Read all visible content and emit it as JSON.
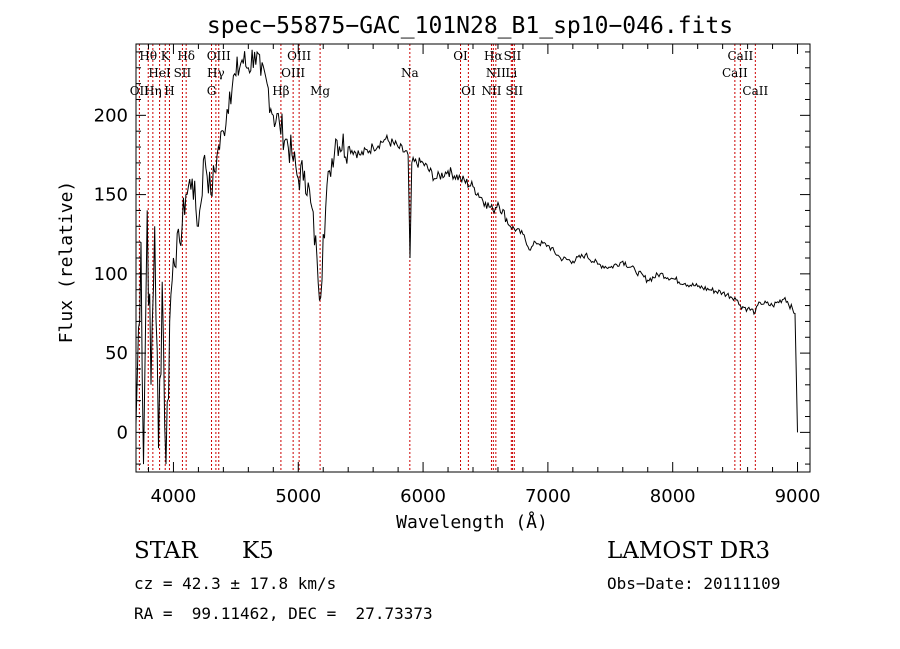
{
  "chart_data": {
    "type": "line",
    "title": "spec−55875−GAC_101N28_B1_sp10−046.fits",
    "xlabel": "Wavelength (Å)",
    "ylabel": "Flux (relative)",
    "xlim": [
      3700,
      9100
    ],
    "ylim": [
      -25,
      245
    ],
    "xticks": [
      4000,
      5000,
      6000,
      7000,
      8000,
      9000
    ],
    "yticks": [
      0,
      50,
      100,
      150,
      200
    ],
    "grid": false,
    "series": [
      {
        "name": "spectrum",
        "x": [
          3700,
          3740,
          3760,
          3790,
          3820,
          3850,
          3880,
          3910,
          3940,
          3970,
          4000,
          4050,
          4100,
          4150,
          4200,
          4250,
          4300,
          4350,
          4400,
          4450,
          4500,
          4550,
          4600,
          4650,
          4700,
          4750,
          4800,
          4850,
          4900,
          4950,
          5000,
          5050,
          5100,
          5150,
          5180,
          5200,
          5250,
          5300,
          5400,
          5500,
          5600,
          5700,
          5800,
          5880,
          5895,
          5910,
          6000,
          6100,
          6200,
          6300,
          6400,
          6500,
          6560,
          6600,
          6700,
          6800,
          6860,
          6900,
          7000,
          7100,
          7200,
          7300,
          7400,
          7500,
          7600,
          7700,
          7800,
          7900,
          8000,
          8100,
          8200,
          8300,
          8400,
          8498,
          8542,
          8600,
          8662,
          8700,
          8800,
          8900,
          8980,
          9000
        ],
        "y": [
          5,
          120,
          -20,
          140,
          30,
          130,
          -10,
          95,
          -20,
          70,
          110,
          120,
          150,
          160,
          130,
          175,
          150,
          175,
          190,
          215,
          225,
          235,
          230,
          240,
          225,
          220,
          200,
          195,
          185,
          175,
          160,
          165,
          145,
          110,
          85,
          125,
          165,
          185,
          180,
          175,
          180,
          185,
          180,
          175,
          110,
          170,
          170,
          160,
          165,
          160,
          155,
          145,
          140,
          145,
          130,
          125,
          115,
          120,
          118,
          110,
          108,
          112,
          106,
          104,
          108,
          102,
          96,
          100,
          97,
          94,
          92,
          90,
          88,
          85,
          80,
          78,
          76,
          82,
          80,
          85,
          75,
          0
        ]
      }
    ],
    "lines": [
      {
        "name": "OII",
        "wavelength": 3727,
        "row": 3
      },
      {
        "name": "Hθ",
        "wavelength": 3798,
        "row": 1
      },
      {
        "name": "Hη",
        "wavelength": 3835,
        "row": 3
      },
      {
        "name": "HeI",
        "wavelength": 3889,
        "row": 2
      },
      {
        "name": "K",
        "wavelength": 3934,
        "row": 1
      },
      {
        "name": "H",
        "wavelength": 3968,
        "row": 3
      },
      {
        "name": "SII",
        "wavelength": 4072,
        "row": 2
      },
      {
        "name": "Hδ",
        "wavelength": 4102,
        "row": 1
      },
      {
        "name": "G",
        "wavelength": 4305,
        "row": 3
      },
      {
        "name": "Hγ",
        "wavelength": 4340,
        "row": 2
      },
      {
        "name": "OIII",
        "wavelength": 4363,
        "row": 1
      },
      {
        "name": "Hβ",
        "wavelength": 4861,
        "row": 3
      },
      {
        "name": "OIII",
        "wavelength": 4959,
        "row": 2
      },
      {
        "name": "OIII",
        "wavelength": 5007,
        "row": 1
      },
      {
        "name": "Mg",
        "wavelength": 5175,
        "row": 3
      },
      {
        "name": "Na",
        "wavelength": 5894,
        "row": 2
      },
      {
        "name": "OI",
        "wavelength": 6300,
        "row": 1
      },
      {
        "name": "OI",
        "wavelength": 6363,
        "row": 3
      },
      {
        "name": "NII",
        "wavelength": 6548,
        "row": 3
      },
      {
        "name": "Hα",
        "wavelength": 6563,
        "row": 1
      },
      {
        "name": "NII",
        "wavelength": 6583,
        "row": 2
      },
      {
        "name": "Li",
        "wavelength": 6707,
        "row": 2
      },
      {
        "name": "SII",
        "wavelength": 6716,
        "row": 1
      },
      {
        "name": "SII",
        "wavelength": 6731,
        "row": 3
      },
      {
        "name": "CaII",
        "wavelength": 8498,
        "row": 2
      },
      {
        "name": "CaII",
        "wavelength": 8542,
        "row": 1
      },
      {
        "name": "CaII",
        "wavelength": 8662,
        "row": 3
      }
    ]
  },
  "info": {
    "class": "STAR",
    "subclass": "K5",
    "survey": "LAMOST DR3",
    "cz": "cz = 42.3 ± 17.8 km/s",
    "obs_date": "Obs−Date: 20111109",
    "radec": "RA =  99.11462, DEC =  27.73373"
  },
  "colors": {
    "spectrum": "#000000",
    "line_marker": "#cc0000",
    "axes": "#000000"
  }
}
